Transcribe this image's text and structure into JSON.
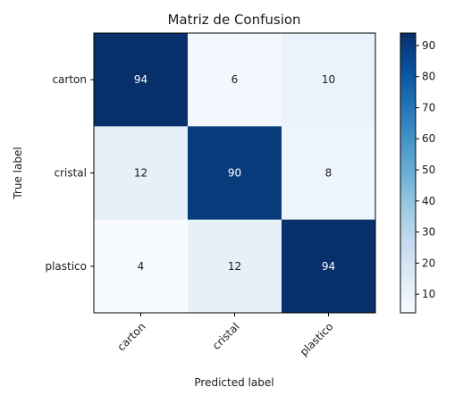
{
  "chart_data": {
    "type": "heatmap",
    "title": "Matriz de Confusion",
    "xlabel": "Predicted label",
    "ylabel": "True label",
    "x_categories": [
      "carton",
      "cristal",
      "plastico"
    ],
    "y_categories": [
      "carton",
      "cristal",
      "plastico"
    ],
    "values": [
      [
        94,
        6,
        10
      ],
      [
        12,
        90,
        8
      ],
      [
        4,
        12,
        94
      ]
    ],
    "colormap": "Blues",
    "colorbar": {
      "range": [
        4,
        94
      ],
      "ticks": [
        10,
        20,
        30,
        40,
        50,
        60,
        70,
        80,
        90
      ]
    },
    "grid": false
  }
}
